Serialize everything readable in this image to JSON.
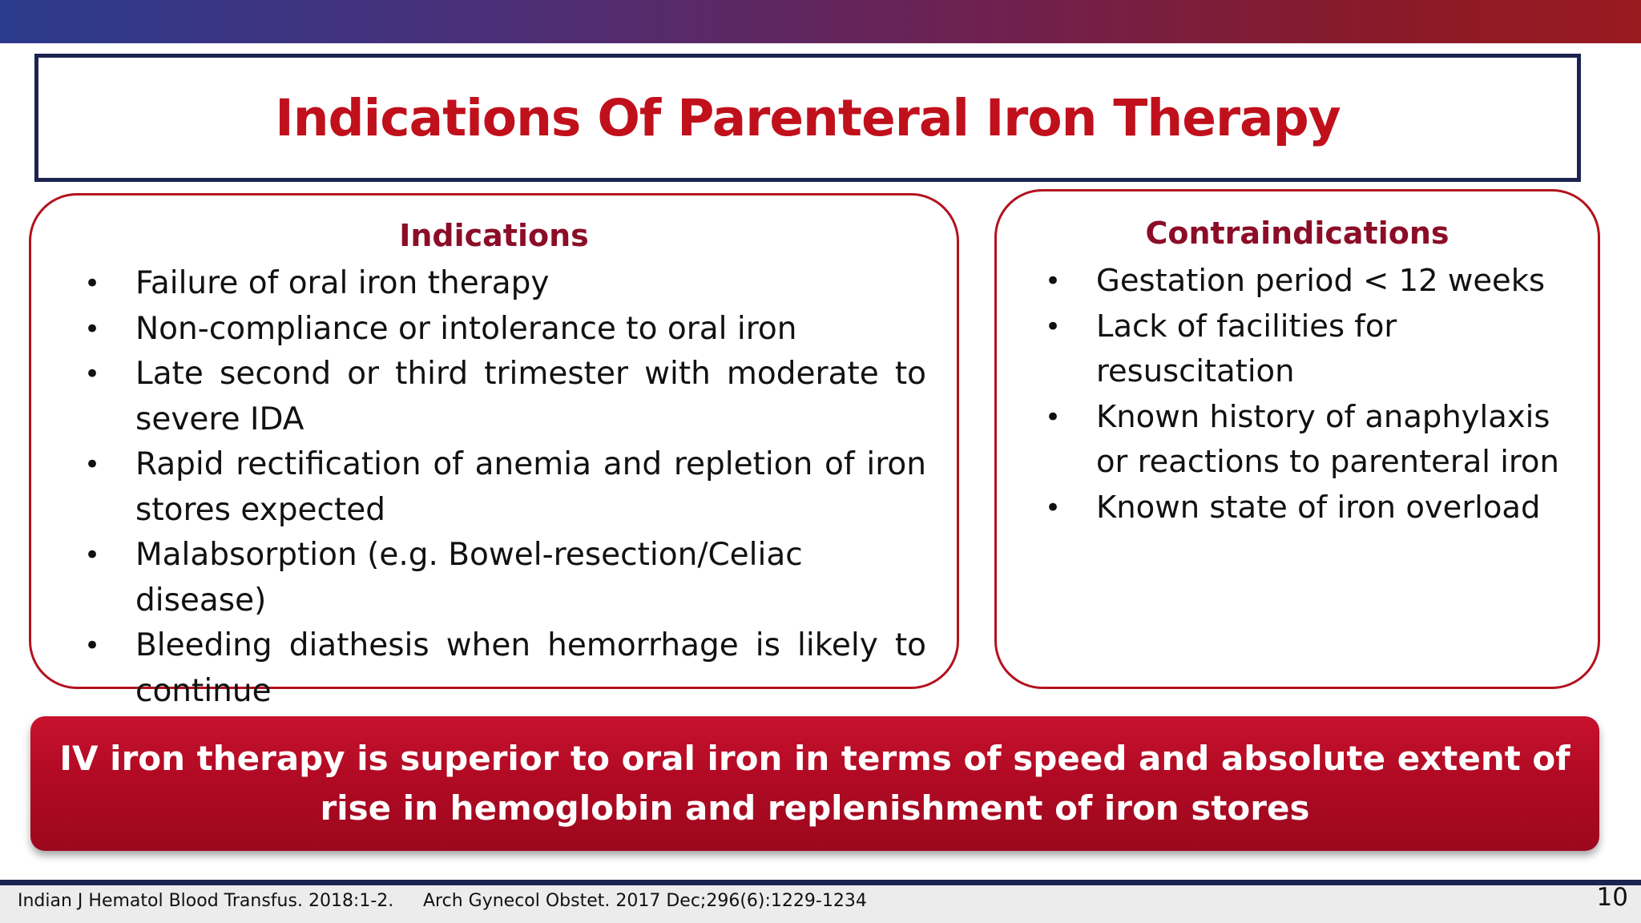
{
  "slide": {
    "title": "Indications Of Parenteral Iron Therapy",
    "page_number": "10"
  },
  "indications": {
    "heading": "Indications",
    "items": [
      "Failure of oral iron therapy",
      "Non-compliance or intolerance to oral iron",
      "Late second or third trimester with moderate to severe IDA",
      "Rapid rectification of anemia and repletion of iron stores expected",
      "Malabsorption (e.g. Bowel-resection/Celiac disease)",
      "Bleeding diathesis when hemorrhage is likely to continue"
    ]
  },
  "contraindications": {
    "heading": "Contraindications",
    "items": [
      "Gestation period < 12 weeks",
      "Lack of facilities for resuscitation",
      "Known history of anaphylaxis or reactions to parenteral iron",
      "Known state of iron overload"
    ]
  },
  "banner": {
    "line1": "IV iron therapy is superior to oral iron in terms of speed and absolute extent of",
    "line2": "rise in hemoglobin and replenishment of iron stores"
  },
  "footer": {
    "ref1": "Indian J Hematol Blood Transfus. 2018:1-2.",
    "ref2": "Arch Gynecol Obstet. 2017 Dec;296(6):1229-1234"
  },
  "colors": {
    "title_red": "#c0101c",
    "heading_maroon": "#8b0d28",
    "panel_border": "#b3121e",
    "banner_red": "#b10a24",
    "navy": "#1b2450"
  }
}
